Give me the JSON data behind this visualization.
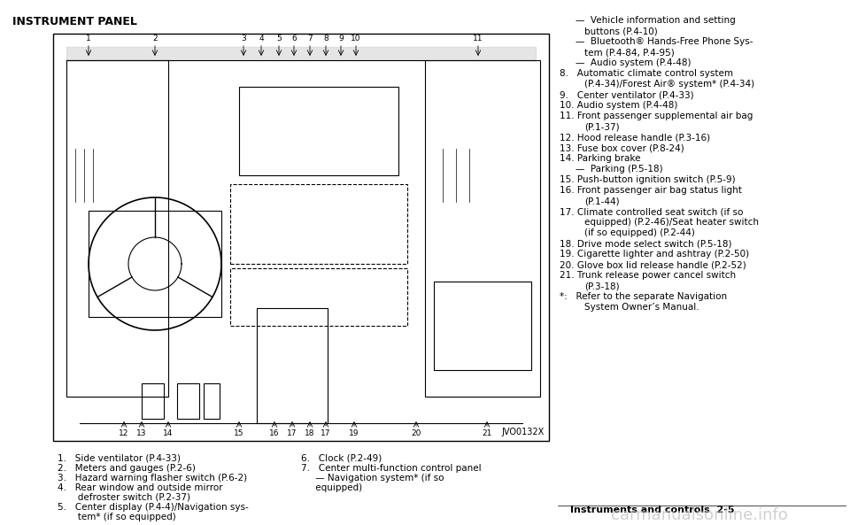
{
  "title": "INSTRUMENT PANEL",
  "bg_color": "#ffffff",
  "text_color": "#000000",
  "page_label": "Instruments and controls  2-5",
  "watermark": "carmanualsonline.info",
  "image_label": "JVO0132X",
  "left_items": [
    "1. Side ventilator (P.4-33)",
    "2. Meters and gauges (P.2-6)",
    "3. Hazard warning flasher switch (P.6-2)",
    "4. Rear window and outside mirror\n      defroster switch (P.2-37)",
    "5. Center display (P.4-4)/Navigation sys-\n      tem* (if so equipped)"
  ],
  "right_items_col2": [
    "6. Clock (P.2-49)",
    "7. Center multi-function control panel\n      — Navigation system* (if so\n      equipped)"
  ],
  "right_col_items": [
    "—  Vehicle information and setting\n     buttons (P.4-10)",
    "—  Bluetooth® Hands-Free Phone Sys-\n     tem (P.4-84, P.4-95)",
    "—  Audio system (P.4-48)",
    "8. Automatic climate control system\n     (P.4-34)/Forest Air® system* (P.4-34)",
    "9. Center ventilator (P.4-33)",
    "10. Audio system (P.4-48)",
    "11. Front passenger supplemental air bag\n      (P.1-37)",
    "12. Hood release handle (P.3-16)",
    "13. Fuse box cover (P.8-24)",
    "14. Parking brake\n      —  Parking (P.5-18)",
    "15. Push-button ignition switch (P.5-9)",
    "16. Front passenger air bag status light\n      (P.1-44)",
    "17. Climate controlled seat switch (if so\n      equipped) (P.2-46)/Seat heater switch\n      (if so equipped) (P.2-44)",
    "18. Drive mode select switch (P.5-18)",
    "19. Cigarette lighter and ashtray (P.2-50)",
    "20. Glove box lid release handle (P.2-52)",
    "21. Trunk release power cancel switch\n      (P.3-18)",
    "*: Refer to the separate Navigation\n    System Owner’s Manual."
  ]
}
